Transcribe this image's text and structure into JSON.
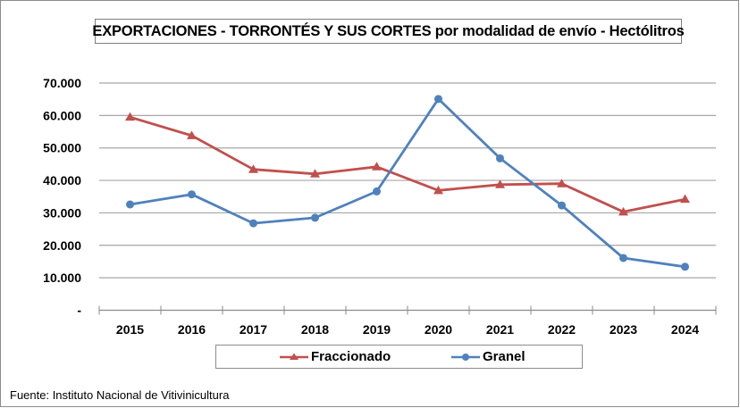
{
  "chart_data": {
    "type": "line",
    "title": "EXPORTACIONES - TORRONTÉS Y SUS CORTES por modalidad de envío - Hectólitros",
    "xlabel": "",
    "ylabel": "",
    "categories": [
      "2015",
      "2016",
      "2017",
      "2018",
      "2019",
      "2020",
      "2021",
      "2022",
      "2023",
      "2024"
    ],
    "series": [
      {
        "name": "Fraccionado",
        "color": "#c0504d",
        "marker": "triangle",
        "values": [
          59500,
          53800,
          43400,
          42000,
          44200,
          36900,
          38700,
          39000,
          30300,
          34200
        ]
      },
      {
        "name": "Granel",
        "color": "#4f81bd",
        "marker": "circle",
        "values": [
          32600,
          35700,
          26800,
          28500,
          36600,
          65100,
          46800,
          32300,
          16100,
          13400
        ]
      }
    ],
    "ylim": [
      0,
      70000
    ],
    "yticks": [
      0,
      10000,
      20000,
      30000,
      40000,
      50000,
      60000,
      70000
    ],
    "ytick_labels": [
      "-",
      "10.000",
      "20.000",
      "30.000",
      "40.000",
      "50.000",
      "60.000",
      "70.000"
    ],
    "grid": true,
    "legend": "bottom"
  },
  "footer": "Fuente: Instituto Nacional de Vitivinicultura"
}
